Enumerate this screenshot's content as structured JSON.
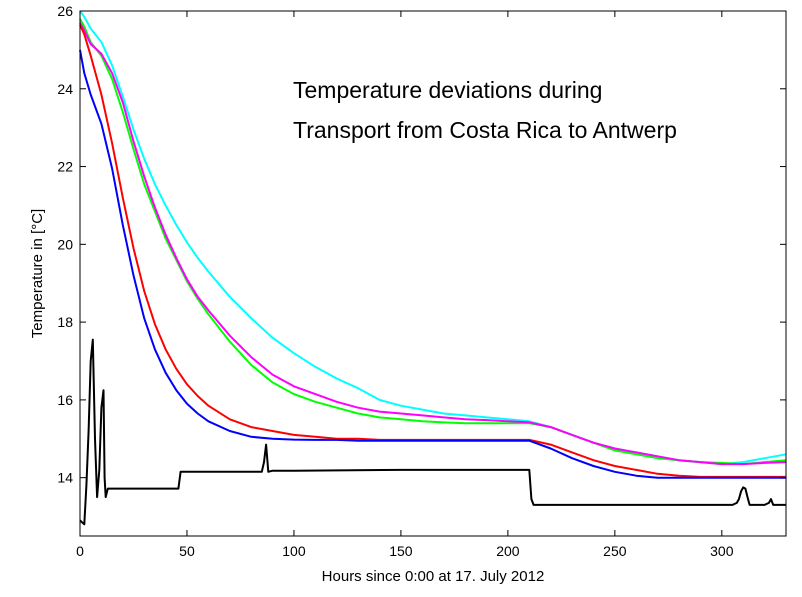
{
  "chart_data": {
    "type": "line",
    "title": "",
    "annotation_lines": [
      "Temperature deviations during",
      "Transport from Costa Rica to Antwerp"
    ],
    "xlabel": "Hours since 0:00 at 17. July 2012",
    "ylabel": "Temperature in [°C]",
    "xlim": [
      0,
      330
    ],
    "ylim": [
      12.5,
      26
    ],
    "xticks": [
      0,
      50,
      100,
      150,
      200,
      250,
      300
    ],
    "yticks": [
      14,
      16,
      18,
      20,
      22,
      24,
      26
    ],
    "grid": false,
    "series": [
      {
        "name": "cyan",
        "color": "#00ffff",
        "x": [
          0,
          2,
          5,
          10,
          15,
          20,
          25,
          30,
          35,
          40,
          45,
          50,
          55,
          60,
          70,
          80,
          90,
          100,
          110,
          120,
          130,
          140,
          150,
          160,
          170,
          180,
          190,
          200,
          210,
          220,
          230,
          240,
          250,
          260,
          270,
          280,
          290,
          300,
          310,
          320,
          330
        ],
        "y": [
          26.0,
          25.85,
          25.55,
          25.2,
          24.6,
          23.8,
          22.95,
          22.2,
          21.55,
          21.0,
          20.5,
          20.05,
          19.65,
          19.3,
          18.65,
          18.1,
          17.6,
          17.2,
          16.85,
          16.55,
          16.3,
          16.0,
          15.85,
          15.75,
          15.65,
          15.6,
          15.55,
          15.5,
          15.45,
          15.3,
          15.1,
          14.9,
          14.75,
          14.65,
          14.55,
          14.45,
          14.4,
          14.35,
          14.4,
          14.5,
          14.6
        ]
      },
      {
        "name": "green",
        "color": "#00ff00",
        "x": [
          0,
          2,
          5,
          10,
          15,
          20,
          25,
          30,
          35,
          40,
          45,
          50,
          55,
          60,
          70,
          80,
          90,
          100,
          110,
          120,
          130,
          140,
          150,
          160,
          170,
          180,
          190,
          200,
          210,
          220,
          230,
          240,
          250,
          260,
          270,
          280,
          290,
          300,
          310,
          320,
          330
        ],
        "y": [
          25.8,
          25.6,
          25.2,
          24.85,
          24.25,
          23.4,
          22.45,
          21.55,
          20.85,
          20.15,
          19.6,
          19.05,
          18.6,
          18.2,
          17.5,
          16.9,
          16.45,
          16.15,
          15.95,
          15.8,
          15.65,
          15.55,
          15.5,
          15.45,
          15.42,
          15.4,
          15.4,
          15.4,
          15.4,
          15.3,
          15.1,
          14.9,
          14.7,
          14.6,
          14.5,
          14.45,
          14.4,
          14.38,
          14.35,
          14.4,
          14.45
        ]
      },
      {
        "name": "magenta",
        "color": "#ff00ff",
        "x": [
          0,
          2,
          5,
          10,
          15,
          20,
          25,
          30,
          35,
          40,
          45,
          50,
          55,
          60,
          70,
          80,
          90,
          100,
          110,
          120,
          130,
          140,
          150,
          160,
          170,
          180,
          190,
          200,
          210,
          220,
          230,
          240,
          250,
          260,
          270,
          280,
          290,
          300,
          310,
          320,
          330
        ],
        "y": [
          25.7,
          25.5,
          25.15,
          24.9,
          24.4,
          23.65,
          22.65,
          21.75,
          20.95,
          20.25,
          19.65,
          19.1,
          18.65,
          18.3,
          17.65,
          17.1,
          16.65,
          16.35,
          16.15,
          15.95,
          15.8,
          15.7,
          15.65,
          15.6,
          15.55,
          15.5,
          15.48,
          15.45,
          15.42,
          15.3,
          15.1,
          14.9,
          14.75,
          14.65,
          14.55,
          14.45,
          14.4,
          14.35,
          14.35,
          14.38,
          14.4
        ]
      },
      {
        "name": "red",
        "color": "#ff0000",
        "x": [
          0,
          2,
          5,
          10,
          15,
          20,
          25,
          30,
          35,
          40,
          45,
          50,
          55,
          60,
          70,
          80,
          90,
          100,
          110,
          120,
          130,
          140,
          150,
          160,
          170,
          180,
          190,
          200,
          210,
          220,
          230,
          240,
          250,
          260,
          270,
          280,
          290,
          300,
          310,
          320,
          330
        ],
        "y": [
          25.65,
          25.4,
          24.85,
          23.85,
          22.6,
          21.2,
          19.9,
          18.8,
          17.95,
          17.3,
          16.8,
          16.4,
          16.1,
          15.85,
          15.5,
          15.3,
          15.2,
          15.1,
          15.05,
          15.0,
          15.0,
          14.97,
          14.97,
          14.97,
          14.97,
          14.97,
          14.97,
          14.97,
          14.97,
          14.85,
          14.65,
          14.45,
          14.3,
          14.2,
          14.1,
          14.05,
          14.02,
          14.02,
          14.02,
          14.02,
          14.02
        ]
      },
      {
        "name": "blue",
        "color": "#0000ff",
        "x": [
          0,
          2,
          5,
          10,
          15,
          20,
          25,
          30,
          35,
          40,
          45,
          50,
          55,
          60,
          70,
          80,
          90,
          100,
          110,
          120,
          130,
          140,
          150,
          160,
          170,
          180,
          190,
          200,
          210,
          220,
          230,
          240,
          250,
          260,
          270,
          280,
          290,
          300,
          310,
          320,
          330
        ],
        "y": [
          25.0,
          24.4,
          23.85,
          23.1,
          21.95,
          20.5,
          19.2,
          18.1,
          17.3,
          16.7,
          16.25,
          15.9,
          15.65,
          15.45,
          15.2,
          15.05,
          15.0,
          14.98,
          14.97,
          14.97,
          14.95,
          14.95,
          14.95,
          14.95,
          14.95,
          14.95,
          14.95,
          14.95,
          14.95,
          14.75,
          14.5,
          14.3,
          14.15,
          14.05,
          14.0,
          14.0,
          14.0,
          14.0,
          14.0,
          14.0,
          14.0
        ]
      },
      {
        "name": "black",
        "color": "#000000",
        "x": [
          0,
          1,
          2,
          3,
          4,
          5,
          6,
          7,
          8,
          9,
          10,
          11,
          11.5,
          12,
          13,
          20,
          30,
          40,
          46,
          47,
          50,
          60,
          70,
          80,
          85,
          86,
          87,
          88,
          90,
          100,
          150,
          200,
          210,
          211,
          212,
          220,
          250,
          300,
          305,
          307,
          308,
          309,
          310,
          311,
          312,
          313,
          315,
          320,
          322,
          323,
          324,
          325,
          330
        ],
        "y": [
          12.9,
          12.85,
          12.8,
          13.8,
          15.2,
          17.0,
          17.55,
          15.0,
          13.5,
          14.2,
          15.8,
          16.25,
          14.0,
          13.5,
          13.72,
          13.72,
          13.72,
          13.72,
          13.72,
          14.15,
          14.15,
          14.15,
          14.15,
          14.15,
          14.15,
          14.4,
          14.85,
          14.15,
          14.18,
          14.18,
          14.2,
          14.2,
          14.2,
          13.45,
          13.3,
          13.3,
          13.3,
          13.3,
          13.3,
          13.35,
          13.45,
          13.65,
          13.75,
          13.72,
          13.5,
          13.3,
          13.3,
          13.3,
          13.35,
          13.45,
          13.3,
          13.3,
          13.3
        ]
      }
    ]
  }
}
